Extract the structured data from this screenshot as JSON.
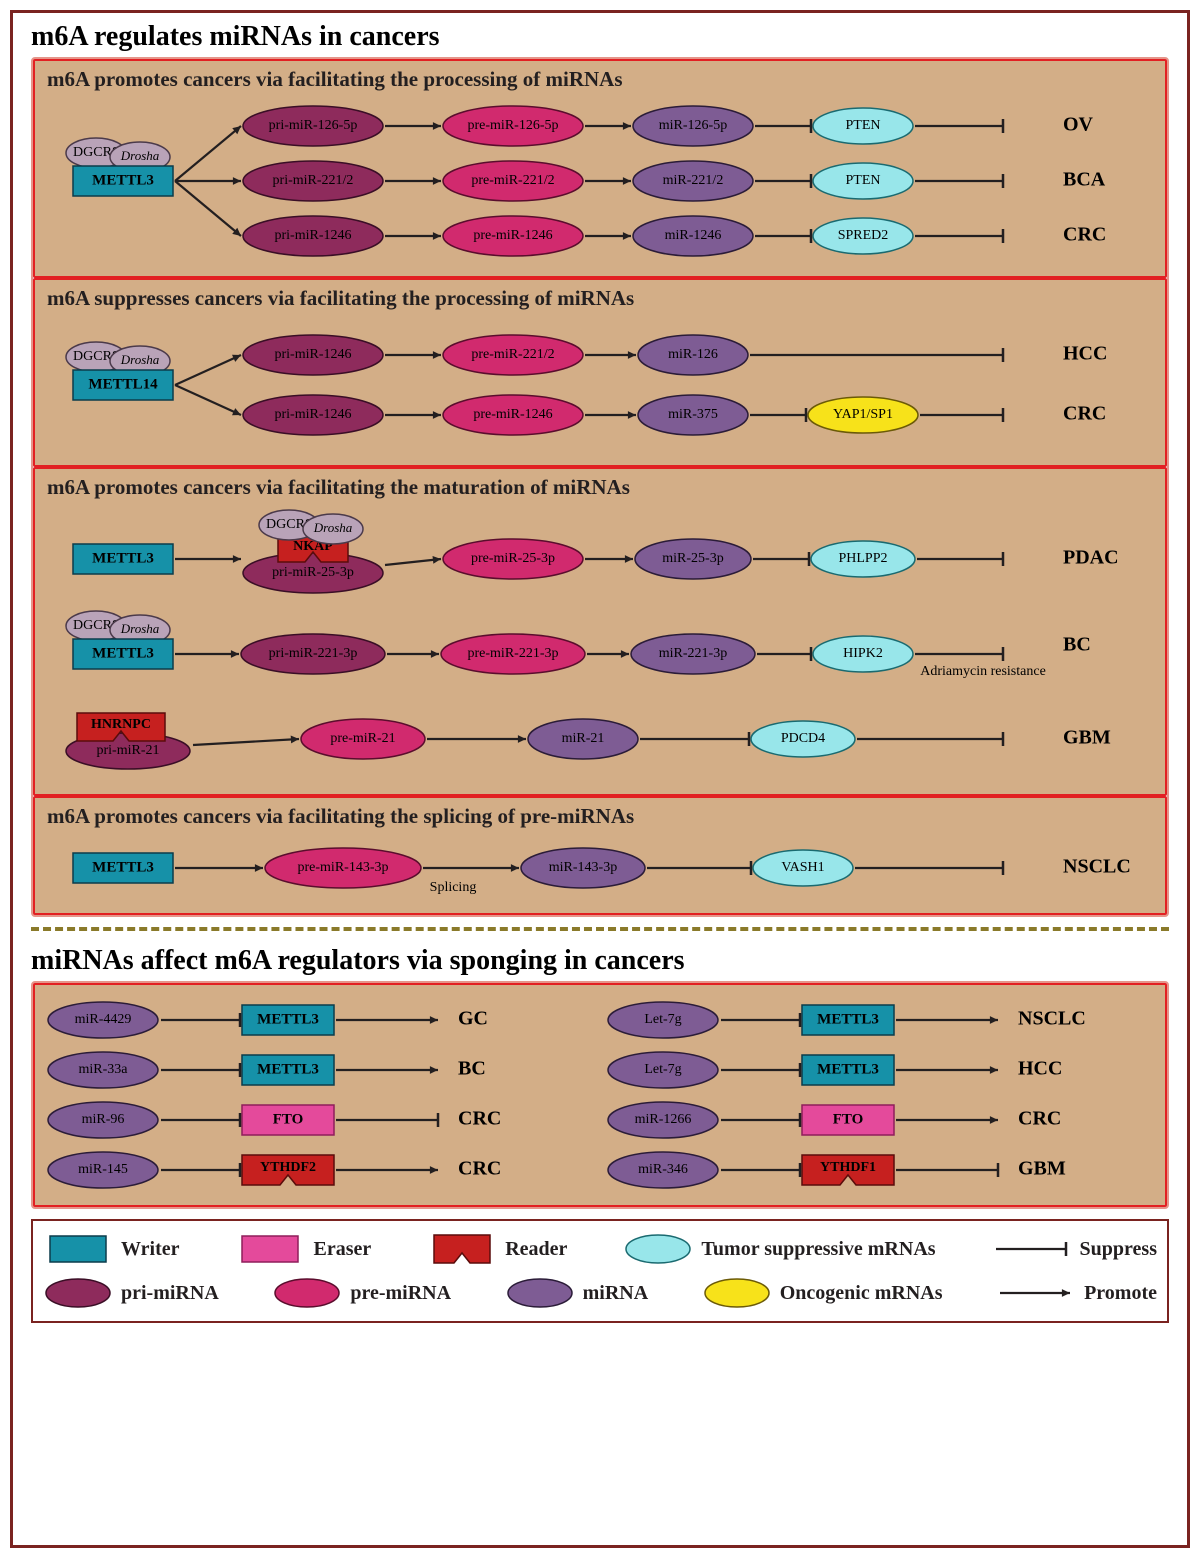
{
  "colors": {
    "outer_border": "#7a2320",
    "pink_border": "#e5968b",
    "red_border": "#e22022",
    "panel_bg": "#d3ae87",
    "writer_fill": "#1691a8",
    "writer_stroke": "#0b3c4b",
    "eraser_fill": "#e44a9b",
    "eraser_stroke": "#8f1e5b",
    "reader_fill": "#c6201f",
    "reader_stroke": "#5a0c0b",
    "pri_fill": "#8e2b5c",
    "pri_stroke": "#3a0e26",
    "pre_fill": "#d12a6e",
    "pre_stroke": "#5a0d2d",
    "mirna_fill": "#7e5c94",
    "mirna_stroke": "#2b1c38",
    "ts_fill": "#98e6ea",
    "ts_stroke": "#1a6a70",
    "onco_fill": "#f7e21a",
    "onco_stroke": "#6b5a07",
    "cofactor_fill": "#b9a3b8",
    "cofactor_stroke": "#4b3a4a",
    "arrow": "#231f20",
    "dash": "#8a7a2a"
  },
  "typography": {
    "main_title_pt": 28,
    "sub_title_pt": 21,
    "node_label_pt": 14,
    "cancer_label_pt": 20,
    "legend_label_pt": 20,
    "annotation_pt": 14
  },
  "titles": {
    "section1": "m6A regulates miRNAs in cancers",
    "section2": "miRNAs affect m6A regulators via sponging in cancers",
    "panel1": "m6A promotes cancers via facilitating the processing of miRNAs",
    "panel2": "m6A suppresses cancers via facilitating the processing of miRNAs",
    "panel3": "m6A promotes cancers via facilitating the maturation of miRNAs",
    "panel4": "m6A promotes cancers via facilitating the splicing of pre-miRNAs",
    "splicing_annot": "Splicing",
    "adriamycin_annot": "Adriamycin resistance"
  },
  "cofactors": {
    "dgcr8": "DGCR8",
    "drosha": "Drosha"
  },
  "panel1": {
    "writer": "METTL3",
    "rows": [
      {
        "pri": "pri-miR-126-5p",
        "pre": "pre-miR-126-5p",
        "mirna": "miR-126-5p",
        "target": "PTEN",
        "target_type": "ts",
        "cancer": "OV"
      },
      {
        "pri": "pri-miR-221/2",
        "pre": "pre-miR-221/2",
        "mirna": "miR-221/2",
        "target": "PTEN",
        "target_type": "ts",
        "cancer": "BCA"
      },
      {
        "pri": "pri-miR-1246",
        "pre": "pre-miR-1246",
        "mirna": "miR-1246",
        "target": "SPRED2",
        "target_type": "ts",
        "cancer": "CRC"
      }
    ]
  },
  "panel2": {
    "writer": "METTL14",
    "rows": [
      {
        "pri": "pri-miR-1246",
        "pre": "pre-miR-221/2",
        "mirna": "miR-126",
        "target": null,
        "cancer": "HCC"
      },
      {
        "pri": "pri-miR-1246",
        "pre": "pre-miR-1246",
        "mirna": "miR-375",
        "target": "YAP1/SP1",
        "target_type": "onco",
        "cancer": "CRC"
      }
    ]
  },
  "panel3": {
    "rows": [
      {
        "writer": "METTL3",
        "reader": "NKAP",
        "pri": "pri-miR-25-3p",
        "pre": "pre-miR-25-3p",
        "mirna": "miR-25-3p",
        "target": "PHLPP2",
        "target_type": "ts",
        "cancer": "PDAC"
      },
      {
        "writer": "METTL3",
        "pri": "pri-miR-221-3p",
        "pre": "pre-miR-221-3p",
        "mirna": "miR-221-3p",
        "target": "HIPK2",
        "target_type": "ts",
        "cancer": "BC",
        "note": "Adriamycin resistance"
      },
      {
        "reader": "HNRNPC",
        "pri": "pri-miR-21",
        "pre": "pre-miR-21",
        "mirna": "miR-21",
        "target": "PDCD4",
        "target_type": "ts",
        "cancer": "GBM"
      }
    ]
  },
  "panel4": {
    "writer": "METTL3",
    "row": {
      "pre": "pre-miR-143-3p",
      "mirna": "miR-143-3p",
      "target": "VASH1",
      "target_type": "ts",
      "cancer": "NSCLC"
    }
  },
  "sponging": {
    "left": [
      {
        "mirna": "miR-4429",
        "reg": "METTL3",
        "reg_type": "writer",
        "edge2": "promote",
        "cancer": "GC"
      },
      {
        "mirna": "miR-33a",
        "reg": "METTL3",
        "reg_type": "writer",
        "edge2": "promote",
        "cancer": "BC"
      },
      {
        "mirna": "miR-96",
        "reg": "FTO",
        "reg_type": "eraser",
        "edge2": "suppress",
        "cancer": "CRC"
      },
      {
        "mirna": "miR-145",
        "reg": "YTHDF2",
        "reg_type": "reader",
        "edge2": "promote",
        "cancer": "CRC"
      }
    ],
    "right": [
      {
        "mirna": "Let-7g",
        "reg": "METTL3",
        "reg_type": "writer",
        "edge2": "promote",
        "cancer": "NSCLC"
      },
      {
        "mirna": "Let-7g",
        "reg": "METTL3",
        "reg_type": "writer",
        "edge2": "promote",
        "cancer": "HCC"
      },
      {
        "mirna": "miR-1266",
        "reg": "FTO",
        "reg_type": "eraser",
        "edge2": "promote",
        "cancer": "CRC"
      },
      {
        "mirna": "miR-346",
        "reg": "YTHDF1",
        "reg_type": "reader",
        "edge2": "suppress",
        "cancer": "GBM"
      }
    ]
  },
  "legend": {
    "row1": [
      {
        "shape": "writer",
        "label": "Writer"
      },
      {
        "shape": "eraser",
        "label": "Eraser"
      },
      {
        "shape": "reader",
        "label": "Reader"
      },
      {
        "shape": "ts",
        "label": "Tumor suppressive mRNAs"
      },
      {
        "shape": "suppress",
        "label": "Suppress"
      }
    ],
    "row2": [
      {
        "shape": "pri",
        "label": "pri-miRNA"
      },
      {
        "shape": "pre",
        "label": "pre-miRNA"
      },
      {
        "shape": "mirna",
        "label": "miRNA"
      },
      {
        "shape": "onco",
        "label": "Oncogenic mRNAs"
      },
      {
        "shape": "promote",
        "label": "Promote"
      }
    ]
  }
}
